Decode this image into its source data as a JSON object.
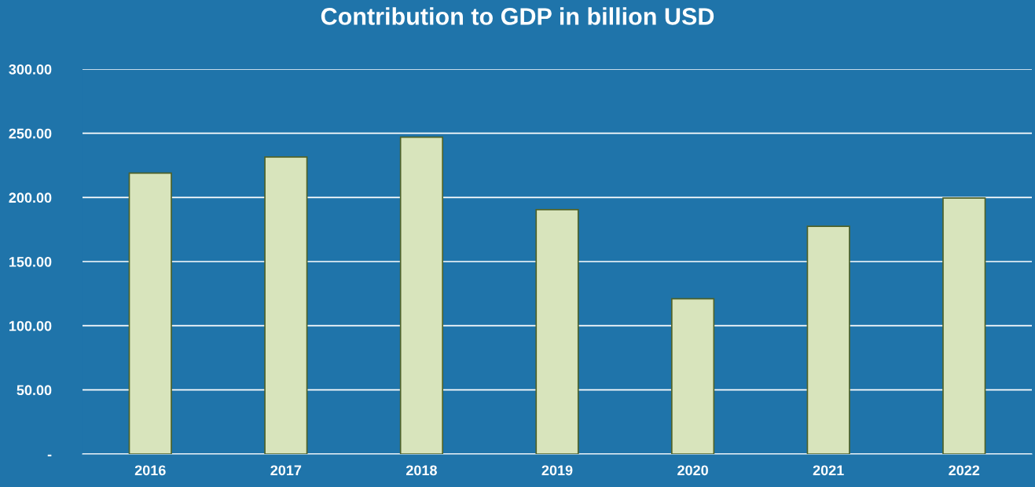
{
  "chart_data": {
    "type": "bar",
    "title": "Contribution to GDP in billion USD",
    "categories": [
      "2016",
      "2017",
      "2018",
      "2019",
      "2020",
      "2021",
      "2022"
    ],
    "values": [
      219,
      231.5,
      247,
      190.5,
      121,
      177.5,
      199.5
    ],
    "color": "#d8e4bc",
    "ylim": [
      0,
      300
    ],
    "yticks": [
      {
        "value": 0,
        "label": "-"
      },
      {
        "value": 50,
        "label": "50.00"
      },
      {
        "value": 100,
        "label": "100.00"
      },
      {
        "value": 150,
        "label": "150.00"
      },
      {
        "value": 200,
        "label": "200.00"
      },
      {
        "value": 250,
        "label": "250.00"
      },
      {
        "value": 300,
        "label": "300.00"
      }
    ],
    "grid": "y",
    "legend": false
  }
}
